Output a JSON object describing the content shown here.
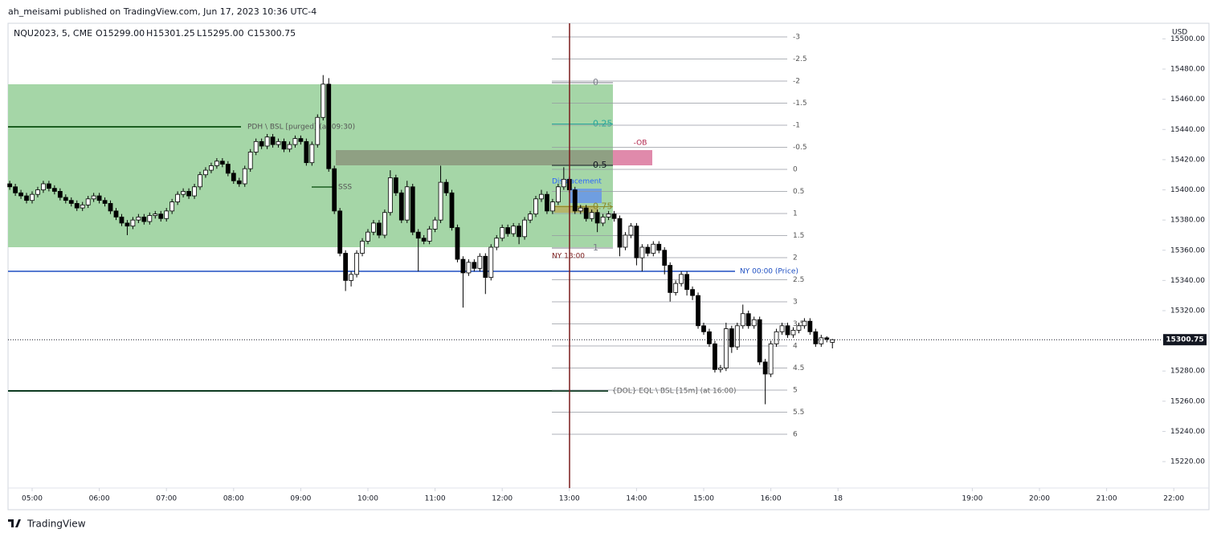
{
  "header": {
    "publisher": "ah_meisami published on TradingView.com, Jun 17, 2023 10:36 UTC-4",
    "symbol": "NQU2023, 5, CME",
    "open": "O15299.00",
    "high": "H15301.25",
    "low": "L15295.00",
    "close": "C15300.75"
  },
  "currency": "USD",
  "brand": "TradingView",
  "annotations": {
    "pdh": "PDH \\ BSL [purged] (at 09:30)",
    "ssl": "SSS",
    "ob": "-OB",
    "displacement": "Displacement",
    "ny_midnight": "NY 00:00 (Price)",
    "dol": "{DOL}  EQL \\ BSL [15m] (at 16:00)",
    "ny_1300": "NY 13:00"
  },
  "retracement_levels": [
    0,
    0.25,
    0.5,
    0.75,
    1
  ],
  "extension_levels": [
    -3,
    -2.5,
    -2,
    -1.5,
    -1,
    -0.5,
    0,
    0.5,
    1,
    1.5,
    2,
    2.5,
    3,
    3.5,
    4,
    4.5,
    5,
    5.5,
    6
  ],
  "chart_data": {
    "type": "candlestick",
    "colors": {
      "up": "#ffffff",
      "down": "#000000",
      "wick": "#000000"
    },
    "ylim": [
      15202.5,
      15509.8
    ],
    "yticks": [
      {
        "value": 15220,
        "label": "15220.00"
      },
      {
        "value": 15240,
        "label": "15240.00"
      },
      {
        "value": 15260,
        "label": "15260.00"
      },
      {
        "value": 15280,
        "label": "15280.00"
      },
      {
        "value": 15300,
        "label": "15300.00"
      },
      {
        "value": 15320,
        "label": "15320.00"
      },
      {
        "value": 15340,
        "label": "15340.00"
      },
      {
        "value": 15360,
        "label": "15360.00"
      },
      {
        "value": 15380,
        "label": "15380.00"
      },
      {
        "value": 15400,
        "label": "15400.00"
      },
      {
        "value": 15420,
        "label": "15420.00"
      },
      {
        "value": 15440,
        "label": "15440.00"
      },
      {
        "value": 15460,
        "label": "15460.00"
      },
      {
        "value": 15480,
        "label": "15480.00"
      },
      {
        "value": 15500,
        "label": "15500.00"
      }
    ],
    "xticks": [
      "05:00",
      "06:00",
      "07:00",
      "08:00",
      "09:00",
      "10:00",
      "11:00",
      "12:00",
      "13:00",
      "14:00",
      "15:00",
      "16:00",
      {
        "value": "17:00",
        "label": "18"
      },
      "19:00",
      "20:00",
      "21:00",
      "22:00"
    ],
    "last_price": {
      "value": 15300.75,
      "label": "15300.75"
    },
    "x": [
      "04:40",
      "04:45",
      "04:50",
      "04:55",
      "05:00",
      "05:05",
      "05:10",
      "05:15",
      "05:20",
      "05:25",
      "05:30",
      "05:35",
      "05:40",
      "05:45",
      "05:50",
      "05:55",
      "06:00",
      "06:05",
      "06:10",
      "06:15",
      "06:20",
      "06:25",
      "06:30",
      "06:35",
      "06:40",
      "06:45",
      "06:50",
      "06:55",
      "07:00",
      "07:05",
      "07:10",
      "07:15",
      "07:20",
      "07:25",
      "07:30",
      "07:35",
      "07:40",
      "07:45",
      "07:50",
      "07:55",
      "08:00",
      "08:05",
      "08:10",
      "08:15",
      "08:20",
      "08:25",
      "08:30",
      "08:35",
      "08:40",
      "08:45",
      "08:50",
      "08:55",
      "09:00",
      "09:05",
      "09:10",
      "09:15",
      "09:20",
      "09:25",
      "09:30",
      "09:35",
      "09:40",
      "09:45",
      "09:50",
      "09:55",
      "10:00",
      "10:05",
      "10:10",
      "10:15",
      "10:20",
      "10:25",
      "10:30",
      "10:35",
      "10:40",
      "10:45",
      "10:50",
      "10:55",
      "11:00",
      "11:05",
      "11:10",
      "11:15",
      "11:20",
      "11:25",
      "11:30",
      "11:35",
      "11:40",
      "11:45",
      "11:50",
      "11:55",
      "12:00",
      "12:05",
      "12:10",
      "12:15",
      "12:20",
      "12:25",
      "12:30",
      "12:35",
      "12:40",
      "12:45",
      "12:50",
      "12:55",
      "13:00",
      "13:05",
      "13:10",
      "13:15",
      "13:20",
      "13:25",
      "13:30",
      "13:35",
      "13:40",
      "13:45",
      "13:50",
      "13:55",
      "14:00",
      "14:05",
      "14:10",
      "14:15",
      "14:20",
      "14:25",
      "14:30",
      "14:35",
      "14:40",
      "14:45",
      "14:50",
      "14:55",
      "15:00",
      "15:05",
      "15:10",
      "15:15",
      "15:20",
      "15:25",
      "15:30",
      "15:35",
      "15:40",
      "15:45",
      "15:50",
      "15:55",
      "16:00",
      "16:05",
      "16:10",
      "16:15",
      "16:20",
      "16:25",
      "16:30",
      "16:35",
      "16:40",
      "16:45",
      "16:50",
      "16:55"
    ],
    "ohlc": [
      [
        15404,
        15406,
        15400,
        15402
      ],
      [
        15402,
        15404,
        15396,
        15398
      ],
      [
        15398,
        15400,
        15394,
        15396
      ],
      [
        15396,
        15398,
        15391,
        15393
      ],
      [
        15393,
        15399,
        15391,
        15397
      ],
      [
        15397,
        15402,
        15395,
        15400
      ],
      [
        15400,
        15406,
        15398,
        15404
      ],
      [
        15404,
        15406,
        15399,
        15401
      ],
      [
        15401,
        15403,
        15397,
        15399
      ],
      [
        15399,
        15401,
        15393,
        15395
      ],
      [
        15395,
        15397,
        15391,
        15393
      ],
      [
        15393,
        15395,
        15389,
        15391
      ],
      [
        15391,
        15393,
        15386,
        15388
      ],
      [
        15388,
        15392,
        15386,
        15390
      ],
      [
        15390,
        15396,
        15388,
        15394
      ],
      [
        15394,
        15398,
        15392,
        15396
      ],
      [
        15396,
        15398,
        15391,
        15393
      ],
      [
        15393,
        15395,
        15389,
        15391
      ],
      [
        15391,
        15393,
        15384,
        15386
      ],
      [
        15386,
        15388,
        15380,
        15382
      ],
      [
        15382,
        15384,
        15376,
        15378
      ],
      [
        15378,
        15380,
        15370,
        15376
      ],
      [
        15376,
        15382,
        15374,
        15380
      ],
      [
        15380,
        15384,
        15378,
        15382
      ],
      [
        15382,
        15384,
        15377,
        15379
      ],
      [
        15379,
        15385,
        15377,
        15383
      ],
      [
        15383,
        15386,
        15381,
        15384
      ],
      [
        15384,
        15386,
        15379,
        15381
      ],
      [
        15381,
        15388,
        15379,
        15386
      ],
      [
        15386,
        15394,
        15384,
        15392
      ],
      [
        15392,
        15399,
        15390,
        15397
      ],
      [
        15397,
        15401,
        15395,
        15399
      ],
      [
        15399,
        15401,
        15394,
        15396
      ],
      [
        15396,
        15404,
        15394,
        15402
      ],
      [
        15402,
        15412,
        15400,
        15410
      ],
      [
        15410,
        15415,
        15408,
        15413
      ],
      [
        15413,
        15418,
        15411,
        15416
      ],
      [
        15416,
        15421,
        15414,
        15419
      ],
      [
        15419,
        15421,
        15415,
        15417
      ],
      [
        15417,
        15419,
        15409,
        15411
      ],
      [
        15411,
        15413,
        15404,
        15406
      ],
      [
        15406,
        15408,
        15402,
        15404
      ],
      [
        15404,
        15416,
        15402,
        15414
      ],
      [
        15414,
        15427,
        15412,
        15425
      ],
      [
        15425,
        15434,
        15423,
        15432
      ],
      [
        15432,
        15434,
        15427,
        15429
      ],
      [
        15429,
        15437,
        15427,
        15435
      ],
      [
        15435,
        15437,
        15428,
        15430
      ],
      [
        15430,
        15434,
        15428,
        15432
      ],
      [
        15432,
        15434,
        15425,
        15427
      ],
      [
        15427,
        15432,
        15425,
        15430
      ],
      [
        15430,
        15436,
        15428,
        15434
      ],
      [
        15434,
        15436,
        15430,
        15432
      ],
      [
        15432,
        15434,
        15416,
        15418
      ],
      [
        15418,
        15432,
        15416,
        15430
      ],
      [
        15430,
        15450,
        15428,
        15448
      ],
      [
        15448,
        15476,
        15446,
        15470
      ],
      [
        15470,
        15474,
        15412,
        15414
      ],
      [
        15414,
        15416,
        15384,
        15386
      ],
      [
        15386,
        15388,
        15356,
        15358
      ],
      [
        15358,
        15360,
        15333,
        15340
      ],
      [
        15340,
        15346,
        15336,
        15344
      ],
      [
        15344,
        15360,
        15342,
        15358
      ],
      [
        15358,
        15368,
        15356,
        15366
      ],
      [
        15366,
        15374,
        15364,
        15372
      ],
      [
        15372,
        15380,
        15370,
        15378
      ],
      [
        15378,
        15380,
        15368,
        15370
      ],
      [
        15370,
        15387,
        15368,
        15385
      ],
      [
        15385,
        15413,
        15383,
        15408
      ],
      [
        15408,
        15410,
        15396,
        15398
      ],
      [
        15398,
        15400,
        15378,
        15380
      ],
      [
        15380,
        15406,
        15378,
        15402
      ],
      [
        15402,
        15404,
        15370,
        15372
      ],
      [
        15372,
        15374,
        15346,
        15368
      ],
      [
        15368,
        15370,
        15364,
        15366
      ],
      [
        15366,
        15376,
        15364,
        15374
      ],
      [
        15374,
        15382,
        15372,
        15380
      ],
      [
        15380,
        15416,
        15378,
        15405
      ],
      [
        15405,
        15407,
        15396,
        15398
      ],
      [
        15398,
        15400,
        15373,
        15375
      ],
      [
        15375,
        15377,
        15352,
        15354
      ],
      [
        15354,
        15356,
        15322,
        15345
      ],
      [
        15345,
        15354,
        15343,
        15352
      ],
      [
        15352,
        15354,
        15346,
        15348
      ],
      [
        15348,
        15358,
        15346,
        15356
      ],
      [
        15356,
        15358,
        15331,
        15342
      ],
      [
        15342,
        15364,
        15340,
        15362
      ],
      [
        15362,
        15370,
        15360,
        15368
      ],
      [
        15368,
        15377,
        15366,
        15375
      ],
      [
        15375,
        15377,
        15369,
        15371
      ],
      [
        15371,
        15378,
        15369,
        15376
      ],
      [
        15376,
        15378,
        15364,
        15369
      ],
      [
        15369,
        15382,
        15367,
        15380
      ],
      [
        15380,
        15386,
        15378,
        15384
      ],
      [
        15384,
        15396,
        15382,
        15394
      ],
      [
        15394,
        15400,
        15392,
        15397
      ],
      [
        15397,
        15399,
        15384,
        15386
      ],
      [
        15386,
        15394,
        15384,
        15392
      ],
      [
        15392,
        15404,
        15390,
        15402
      ],
      [
        15402,
        15415,
        15400,
        15407
      ],
      [
        15407,
        15409,
        15398,
        15400
      ],
      [
        15400,
        15402,
        15384,
        15386
      ],
      [
        15386,
        15390,
        15384,
        15388
      ],
      [
        15388,
        15390,
        15379,
        15381
      ],
      [
        15381,
        15387,
        15379,
        15385
      ],
      [
        15385,
        15387,
        15372,
        15378
      ],
      [
        15378,
        15384,
        15376,
        15382
      ],
      [
        15382,
        15386,
        15380,
        15384
      ],
      [
        15384,
        15386,
        15379,
        15381
      ],
      [
        15381,
        15383,
        15356,
        15362
      ],
      [
        15362,
        15372,
        15360,
        15370
      ],
      [
        15370,
        15378,
        15368,
        15376
      ],
      [
        15376,
        15378,
        15350,
        15355
      ],
      [
        15355,
        15364,
        15346,
        15362
      ],
      [
        15362,
        15364,
        15356,
        15358
      ],
      [
        15358,
        15366,
        15356,
        15364
      ],
      [
        15364,
        15366,
        15358,
        15360
      ],
      [
        15360,
        15362,
        15344,
        15350
      ],
      [
        15350,
        15352,
        15326,
        15332
      ],
      [
        15332,
        15340,
        15330,
        15338
      ],
      [
        15338,
        15346,
        15336,
        15344
      ],
      [
        15344,
        15346,
        15330,
        15334
      ],
      [
        15334,
        15336,
        15327,
        15330
      ],
      [
        15330,
        15332,
        15308,
        15310
      ],
      [
        15310,
        15312,
        15304,
        15306
      ],
      [
        15306,
        15308,
        15296,
        15298
      ],
      [
        15298,
        15300,
        15279,
        15281
      ],
      [
        15281,
        15284,
        15279,
        15282
      ],
      [
        15282,
        15312,
        15280,
        15308
      ],
      [
        15308,
        15310,
        15292,
        15296
      ],
      [
        15296,
        15312,
        15294,
        15310
      ],
      [
        15310,
        15324,
        15308,
        15318
      ],
      [
        15318,
        15320,
        15308,
        15310
      ],
      [
        15310,
        15316,
        15308,
        15314
      ],
      [
        15314,
        15316,
        15284,
        15286
      ],
      [
        15286,
        15288,
        15258,
        15278
      ],
      [
        15278,
        15300,
        15276,
        15298
      ],
      [
        15298,
        15308,
        15296,
        15306
      ],
      [
        15306,
        15312,
        15304,
        15310
      ],
      [
        15310,
        15312,
        15302,
        15304
      ],
      [
        15304,
        15309,
        15302,
        15307
      ],
      [
        15307,
        15312,
        15305,
        15310
      ],
      [
        15310,
        15315,
        15308,
        15313
      ],
      [
        15313,
        15315,
        15304,
        15306
      ],
      [
        15306,
        15308,
        15296,
        15298
      ],
      [
        15298,
        15304,
        15296,
        15302
      ],
      [
        15302,
        15303,
        15299,
        15301
      ],
      [
        15299,
        15301.25,
        15295,
        15300.75
      ]
    ]
  }
}
